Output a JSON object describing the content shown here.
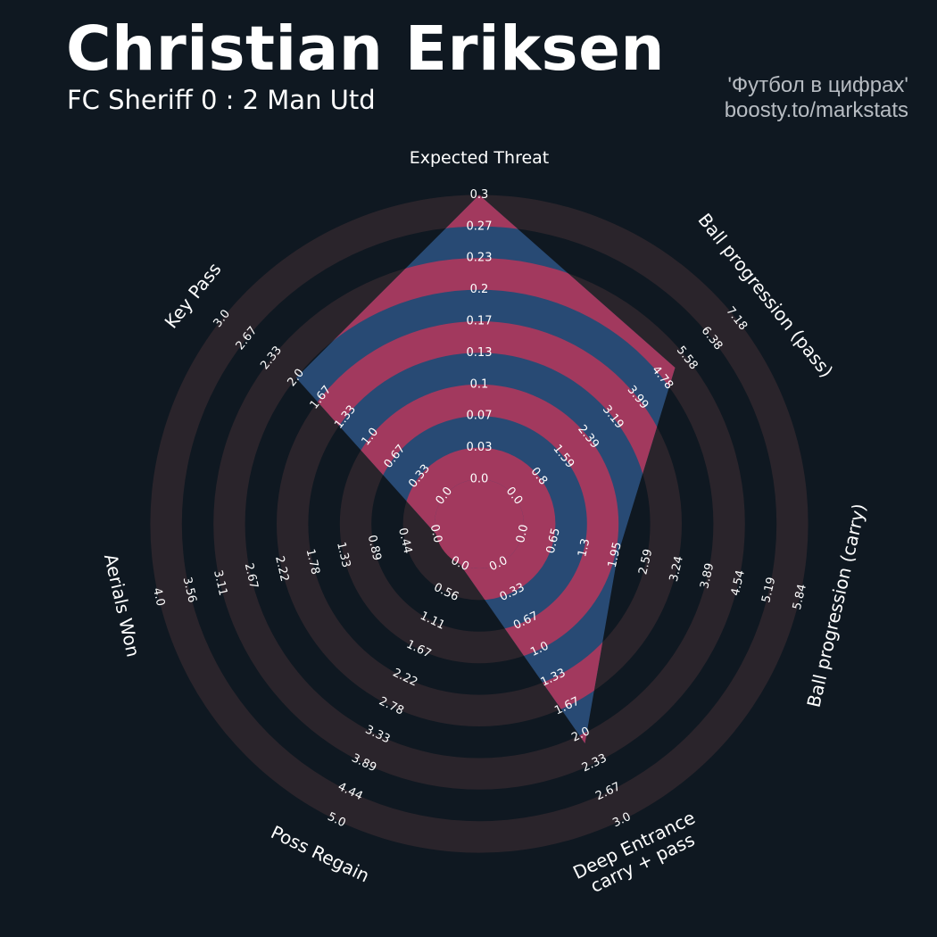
{
  "header": {
    "title": "Christian Eriksen",
    "subtitle": "FC Sheriff 0 : 2 Man Utd"
  },
  "credits": {
    "line1": "'Футбол в цифрах'",
    "line2": "boosty.to/markstats"
  },
  "colors": {
    "background": "#0f1821",
    "ring": "#2a242b",
    "player_fill_blue": "#284a74",
    "player_fill_pink": "#a2395e",
    "text": "#ffffff"
  },
  "chart_data": {
    "type": "radar",
    "title": "Christian Eriksen",
    "subtitle": "FC Sheriff 0 : 2 Man Utd",
    "params": [
      {
        "label": "Expected Threat",
        "label_lines": [
          "Expected Threat"
        ],
        "ticks": [
          "0.0",
          "0.03",
          "0.07",
          "0.1",
          "0.13",
          "0.17",
          "0.2",
          "0.23",
          "0.27",
          "0.3"
        ],
        "min": 0.0,
        "max": 0.3,
        "value": 0.3
      },
      {
        "label": "Ball progression (pass)",
        "label_lines": [
          "Ball progression (pass)"
        ],
        "ticks": [
          "0.0",
          "0.8",
          "1.59",
          "2.39",
          "3.19",
          "3.99",
          "4.78",
          "5.58",
          "6.38",
          "7.18"
        ],
        "min": 0.0,
        "max": 7.18,
        "value": 5.2
      },
      {
        "label": "Ball progression (carry)",
        "label_lines": [
          "Ball progression (carry)"
        ],
        "ticks": [
          "0.0",
          "0.65",
          "1.3",
          "1.95",
          "2.59",
          "3.24",
          "3.89",
          "4.54",
          "5.19",
          "5.84"
        ],
        "min": 0.0,
        "max": 5.84,
        "value": 2.0
      },
      {
        "label": "Deep Entrance carry + pass",
        "label_lines": [
          "Deep Entrance",
          "carry + pass"
        ],
        "ticks": [
          "0.0",
          "0.33",
          "0.67",
          "1.0",
          "1.33",
          "1.67",
          "2.0",
          "2.33",
          "2.67",
          "3.0"
        ],
        "min": 0.0,
        "max": 3.0,
        "value": 2.1
      },
      {
        "label": "Poss Regain",
        "label_lines": [
          "Poss Regain"
        ],
        "ticks": [
          "0.0",
          "0.56",
          "1.11",
          "1.67",
          "2.22",
          "2.78",
          "3.33",
          "3.89",
          "4.44",
          "5.0"
        ],
        "min": 0.0,
        "max": 5.0,
        "value": 0.0
      },
      {
        "label": "Aerials Won",
        "label_lines": [
          "Aerials Won"
        ],
        "ticks": [
          "0.0",
          "0.44",
          "0.89",
          "1.33",
          "1.78",
          "2.22",
          "2.67",
          "3.11",
          "3.56",
          "4.0"
        ],
        "min": 0.0,
        "max": 4.0,
        "value": 0.0
      },
      {
        "label": "Key Pass",
        "label_lines": [
          "Key Pass"
        ],
        "ticks": [
          "0.0",
          "0.33",
          "0.67",
          "1.0",
          "1.33",
          "1.67",
          "2.0",
          "2.33",
          "2.67",
          "3.0"
        ],
        "min": 0.0,
        "max": 3.0,
        "value": 2.0
      }
    ]
  }
}
